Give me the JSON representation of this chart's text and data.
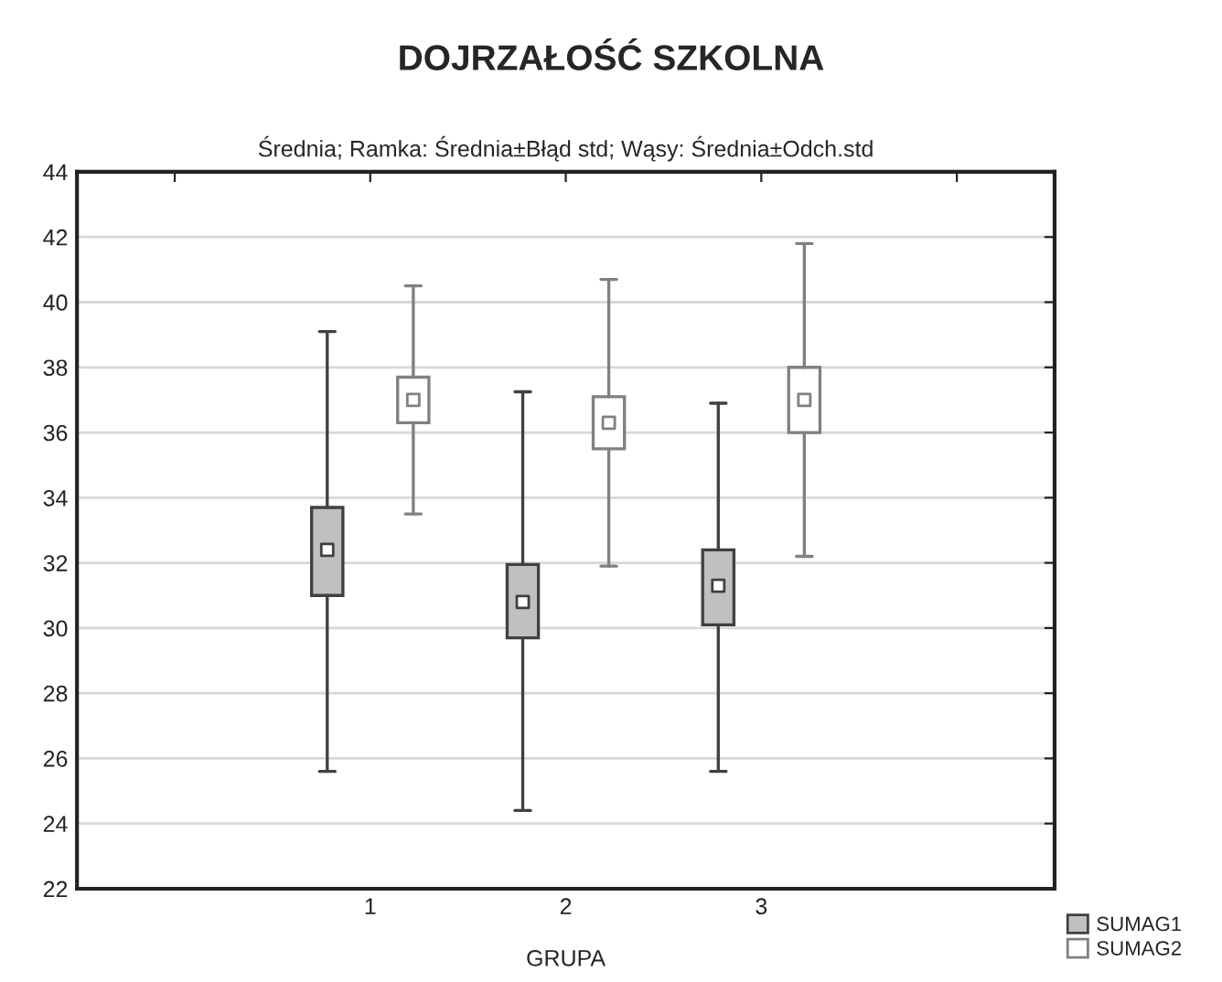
{
  "chart_data": {
    "type": "box",
    "title": "DOJRZAŁOŚĆ SZKOLNA",
    "subtitle": "Średnia; Ramka: Średnia±Błąd std; Wąsy: Średnia±Odch.std",
    "xlabel": "GRUPA",
    "categories": [
      "1",
      "2",
      "3"
    ],
    "series": [
      {
        "name": "SUMAG1",
        "color": "#c0c0c0",
        "boxes": [
          {
            "low": 25.6,
            "q1": 31.0,
            "median": 32.4,
            "q3": 33.7,
            "high": 39.1
          },
          {
            "low": 24.4,
            "q1": 29.7,
            "median": 30.8,
            "q3": 31.95,
            "high": 37.25
          },
          {
            "low": 25.6,
            "q1": 30.1,
            "median": 31.3,
            "q3": 32.4,
            "high": 36.9
          }
        ]
      },
      {
        "name": "SUMAG2",
        "color": "#ffffff",
        "boxes": [
          {
            "low": 33.5,
            "q1": 36.3,
            "median": 37.0,
            "q3": 37.7,
            "high": 40.5
          },
          {
            "low": 31.9,
            "q1": 35.5,
            "median": 36.3,
            "q3": 37.1,
            "high": 40.7
          },
          {
            "low": 32.2,
            "q1": 36.0,
            "median": 37.0,
            "q3": 38.0,
            "high": 41.8
          }
        ]
      }
    ],
    "ylim": [
      22,
      44
    ],
    "yticks": [
      22,
      24,
      26,
      28,
      30,
      32,
      34,
      36,
      38,
      40,
      42,
      44
    ],
    "grid": "y",
    "legend": "bottom right"
  }
}
